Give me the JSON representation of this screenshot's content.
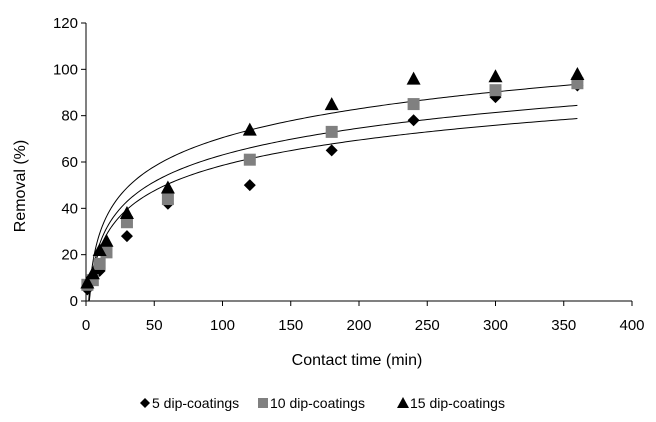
{
  "chart_data": {
    "type": "scatter",
    "title": "",
    "xlabel": "Contact time (min)",
    "ylabel": "Removal (%)",
    "xlim": [
      0,
      400
    ],
    "ylim": [
      0,
      120
    ],
    "xticks": [
      0,
      50,
      100,
      150,
      200,
      250,
      300,
      350,
      400
    ],
    "yticks": [
      0,
      20,
      40,
      60,
      80,
      100,
      120
    ],
    "grid": false,
    "legend_position": "bottom",
    "series": [
      {
        "name": "5 dip-coatings",
        "marker": "diamond",
        "color": "#000000",
        "x": [
          1,
          5,
          10,
          15,
          30,
          60,
          120,
          180,
          240,
          300,
          360
        ],
        "y": [
          5,
          10,
          13,
          22,
          28,
          42,
          50,
          65,
          78,
          88,
          93
        ],
        "fit_line": true
      },
      {
        "name": "10 dip-coatings",
        "marker": "square",
        "color": "#808080",
        "x": [
          1,
          5,
          10,
          15,
          30,
          60,
          120,
          180,
          240,
          300,
          360
        ],
        "y": [
          7,
          9,
          16,
          21,
          34,
          44,
          61,
          73,
          85,
          91,
          94
        ],
        "fit_line": true
      },
      {
        "name": "15 dip-coatings",
        "marker": "triangle",
        "color": "#000000",
        "x": [
          1,
          5,
          10,
          15,
          30,
          60,
          120,
          180,
          240,
          300,
          360
        ],
        "y": [
          8,
          12,
          22,
          26,
          38,
          49,
          74,
          85,
          96,
          97,
          98
        ],
        "fit_line": true
      }
    ]
  }
}
